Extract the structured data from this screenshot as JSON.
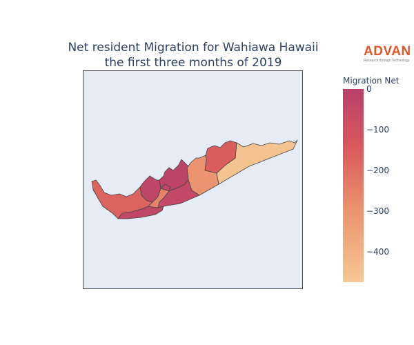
{
  "title": {
    "line1": "Net resident Migration for Wahiawa Hawaii",
    "line2": "the first three months of 2019"
  },
  "logo": {
    "word": "ADVAN",
    "tagline": "Research through Technology"
  },
  "colors": {
    "background": "#e5ecf6",
    "scale": [
      "#b9416b",
      "#d9595d",
      "#ea8f6c",
      "#f6c893"
    ]
  },
  "colorbar": {
    "title": "Migration Net",
    "min": -475,
    "max": 0,
    "ticks": [
      {
        "value": 0,
        "label": "0"
      },
      {
        "value": -100,
        "label": "−100"
      },
      {
        "value": -200,
        "label": "−200"
      },
      {
        "value": -300,
        "label": "−300"
      },
      {
        "value": -400,
        "label": "−400"
      }
    ]
  },
  "regions": [
    {
      "id": "northeast-tail",
      "value": -460
    },
    {
      "id": "north-central",
      "value": -170
    },
    {
      "id": "central-east",
      "value": -330
    },
    {
      "id": "central-north",
      "value": -20
    },
    {
      "id": "central-west-block",
      "value": -35
    },
    {
      "id": "west-arm",
      "value": -190
    },
    {
      "id": "south-strip",
      "value": -40
    },
    {
      "id": "south-east",
      "value": -50
    },
    {
      "id": "small-west",
      "value": -280
    },
    {
      "id": "small-center",
      "value": -30
    }
  ]
}
